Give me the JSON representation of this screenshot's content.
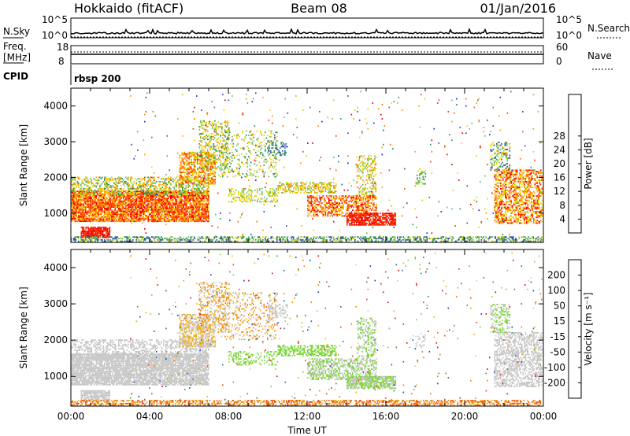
{
  "header": {
    "title_left": "Hokkaido (fitACF)",
    "title_center": "Beam 08",
    "title_right": "01/Jan/2016"
  },
  "top_panels": {
    "nsky_label": "N.Sky",
    "nsky_ticks": [
      "10^5",
      "10^0"
    ],
    "nsearch_label": "N.Search",
    "nsearch_ticks": [
      "10^5",
      "10^0"
    ],
    "freq_label": "Freq.",
    "freq_unit": "[MHz]",
    "freq_ticks": [
      "18",
      "8"
    ],
    "nave_label": "Nave",
    "nave_ticks": [
      "60",
      "0"
    ],
    "cpid_label": "CPID",
    "cpid_value": "rbsp 200"
  },
  "chart_data": [
    {
      "type": "heatmap",
      "panel": "power",
      "xlabel": "",
      "ylabel": "Slant Range [km]",
      "x_ticks": [
        "00:00",
        "04:00",
        "08:00",
        "12:00",
        "16:00",
        "20:00",
        "00:00"
      ],
      "y_ticks": [
        1000,
        2000,
        3000,
        4000
      ],
      "ylim": [
        180,
        4500
      ],
      "xlim_hours": [
        0,
        24
      ],
      "colorbar": {
        "label": "Power [dB]",
        "ticks": [
          4,
          8,
          12,
          16,
          20,
          24,
          28
        ],
        "colors": [
          "#1a1aff",
          "#2a4db0",
          "#2e8b57",
          "#66bb6a",
          "#c8d400",
          "#ffcc00",
          "#ff9900",
          "#ff6600",
          "#ff3300",
          "#ee0000"
        ]
      }
    },
    {
      "type": "heatmap",
      "panel": "velocity",
      "xlabel": "Time UT",
      "ylabel": "Slant Range [km]",
      "x_ticks": [
        "00:00",
        "04:00",
        "08:00",
        "12:00",
        "16:00",
        "20:00",
        "00:00"
      ],
      "y_ticks": [
        1000,
        2000,
        3000,
        4000
      ],
      "ylim": [
        180,
        4500
      ],
      "xlim_hours": [
        0,
        24
      ],
      "colorbar": {
        "label": "Velocity [m s⁻¹]",
        "ticks": [
          200,
          100,
          50,
          15,
          -15,
          -50,
          -100,
          -200
        ],
        "colors": [
          "#1f3fbf",
          "#2f6fa0",
          "#3a9a5a",
          "#7ed43a",
          "#c8c8c8",
          "#f2b020",
          "#f08010",
          "#f04a10",
          "#e81010"
        ]
      }
    }
  ]
}
